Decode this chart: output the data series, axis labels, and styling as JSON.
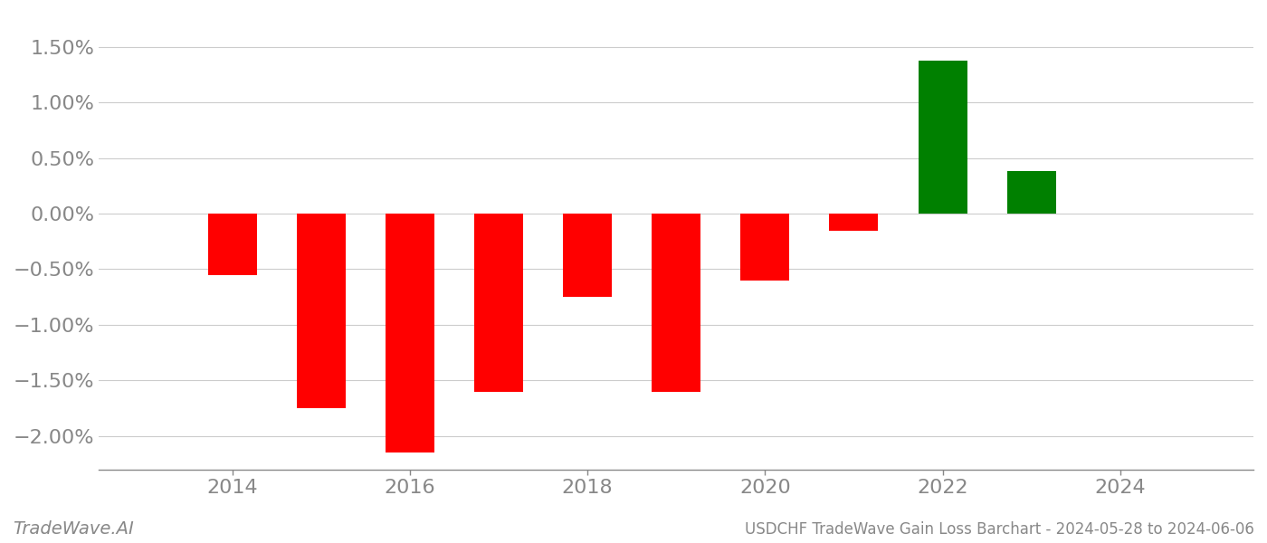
{
  "years": [
    2014,
    2015,
    2016,
    2017,
    2018,
    2019,
    2020,
    2021,
    2022,
    2023
  ],
  "values": [
    -0.0055,
    -0.0175,
    -0.0215,
    -0.016,
    -0.0075,
    -0.016,
    -0.006,
    -0.0015,
    0.0138,
    0.0038
  ],
  "colors": [
    "#ff0000",
    "#ff0000",
    "#ff0000",
    "#ff0000",
    "#ff0000",
    "#ff0000",
    "#ff0000",
    "#ff0000",
    "#008000",
    "#008000"
  ],
  "title": "USDCHF TradeWave Gain Loss Barchart - 2024-05-28 to 2024-06-06",
  "watermark": "TradeWave.AI",
  "ylim": [
    -0.023,
    0.018
  ],
  "yticks": [
    -0.02,
    -0.015,
    -0.01,
    -0.005,
    0.0,
    0.005,
    0.01,
    0.015
  ],
  "bar_width": 0.55,
  "background_color": "#ffffff",
  "grid_color": "#cccccc",
  "title_fontsize": 12,
  "tick_fontsize": 16,
  "watermark_fontsize": 14,
  "xlim_left": 2012.5,
  "xlim_right": 2025.5
}
